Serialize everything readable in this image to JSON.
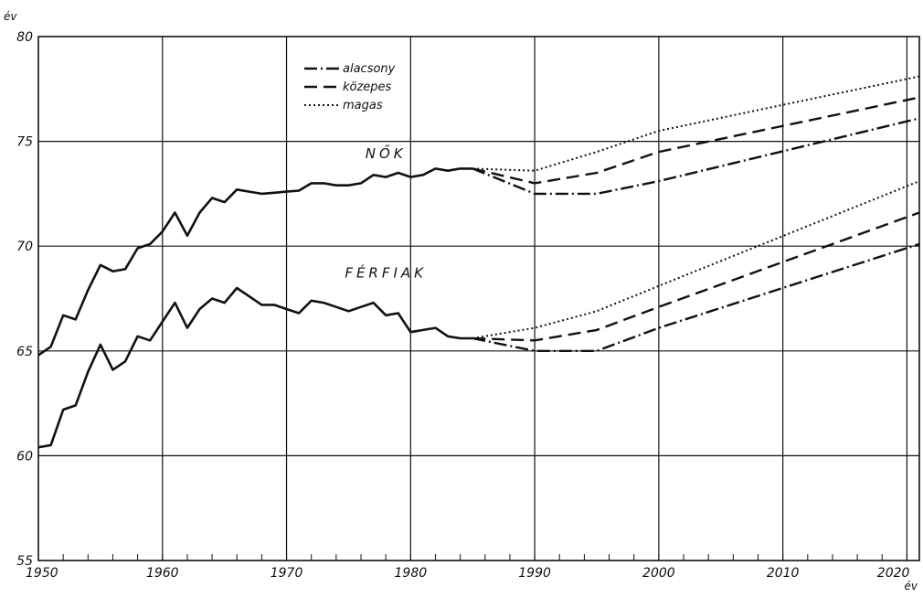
{
  "chart_data": {
    "type": "line",
    "ylabel": "év",
    "xlabel": "év",
    "xlim": [
      1950,
      2021
    ],
    "ylim": [
      55,
      80
    ],
    "xticks": [
      "1950",
      "1960",
      "1970",
      "1980",
      "1990",
      "2000",
      "2010",
      "2020"
    ],
    "yticks": [
      "55",
      "60",
      "65",
      "70",
      "75",
      "80"
    ],
    "grid": true,
    "legend": {
      "placement": "top-center",
      "entries": [
        {
          "label": "alacsony",
          "style": "dash-dot"
        },
        {
          "label": "közepes",
          "style": "dashed"
        },
        {
          "label": "magas",
          "style": "dotted"
        }
      ]
    },
    "historical": [
      {
        "label": "NŐK",
        "x": [
          1950,
          1951,
          1952,
          1953,
          1954,
          1955,
          1956,
          1957,
          1958,
          1959,
          1960,
          1961,
          1962,
          1963,
          1964,
          1965,
          1966,
          1967,
          1968,
          1969,
          1970,
          1971,
          1972,
          1973,
          1974,
          1975,
          1976,
          1977,
          1978,
          1979,
          1980,
          1981,
          1982,
          1983,
          1984,
          1985
        ],
        "y": [
          64.8,
          65.2,
          66.7,
          66.5,
          67.9,
          69.1,
          68.8,
          68.9,
          69.9,
          70.1,
          70.7,
          71.6,
          70.5,
          71.6,
          72.3,
          72.1,
          72.7,
          72.6,
          72.5,
          72.55,
          72.6,
          72.65,
          73.0,
          73.0,
          72.9,
          72.9,
          73.0,
          73.4,
          73.3,
          73.5,
          73.3,
          73.4,
          73.7,
          73.6,
          73.7,
          73.7
        ]
      },
      {
        "label": "FÉRFIAK",
        "x": [
          1950,
          1951,
          1952,
          1953,
          1954,
          1955,
          1956,
          1957,
          1958,
          1959,
          1960,
          1961,
          1962,
          1963,
          1964,
          1965,
          1966,
          1967,
          1968,
          1969,
          1970,
          1971,
          1972,
          1973,
          1974,
          1975,
          1976,
          1977,
          1978,
          1979,
          1980,
          1981,
          1982,
          1983,
          1984,
          1985
        ],
        "y": [
          60.4,
          60.5,
          62.2,
          62.4,
          64.0,
          65.3,
          64.1,
          64.5,
          65.7,
          65.5,
          66.4,
          67.3,
          66.1,
          67.0,
          67.5,
          67.3,
          68.0,
          67.6,
          67.2,
          67.2,
          67.0,
          66.8,
          67.4,
          67.3,
          67.1,
          66.9,
          67.1,
          67.3,
          66.7,
          66.8,
          65.9,
          66.0,
          66.1,
          65.7,
          65.6,
          65.6
        ]
      }
    ],
    "projections": [
      {
        "group": "NŐK",
        "name": "alacsony",
        "x": [
          1985,
          1990,
          1995,
          2000,
          2021
        ],
        "y": [
          73.7,
          72.5,
          72.5,
          73.1,
          76.1
        ]
      },
      {
        "group": "NŐK",
        "name": "közepes",
        "x": [
          1985,
          1990,
          1995,
          2000,
          2021
        ],
        "y": [
          73.7,
          73.0,
          73.5,
          74.5,
          77.1
        ]
      },
      {
        "group": "NŐK",
        "name": "magas",
        "x": [
          1985,
          1990,
          1995,
          2000,
          2021
        ],
        "y": [
          73.7,
          73.6,
          74.5,
          75.5,
          78.1
        ]
      },
      {
        "group": "FÉRFIAK",
        "name": "alacsony",
        "x": [
          1985,
          1990,
          1995,
          2000,
          2021
        ],
        "y": [
          65.6,
          65.0,
          65.0,
          66.1,
          70.1
        ]
      },
      {
        "group": "FÉRFIAK",
        "name": "közepes",
        "x": [
          1985,
          1990,
          1995,
          2000,
          2021
        ],
        "y": [
          65.6,
          65.5,
          66.0,
          67.1,
          71.6
        ]
      },
      {
        "group": "FÉRFIAK",
        "name": "magas",
        "x": [
          1985,
          1990,
          1995,
          2000,
          2021
        ],
        "y": [
          65.6,
          66.1,
          66.9,
          68.1,
          73.1
        ]
      }
    ]
  }
}
